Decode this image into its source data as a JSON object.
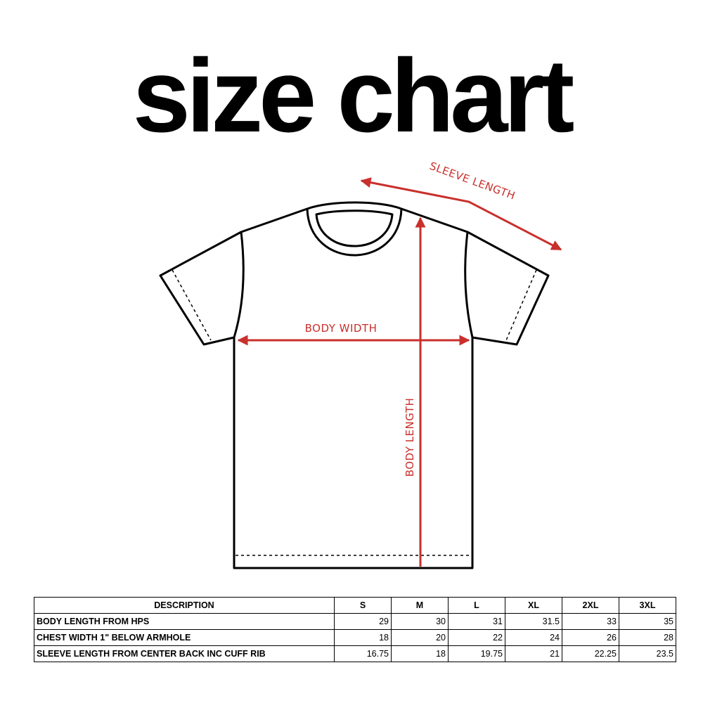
{
  "title": "size chart",
  "diagram": {
    "labels": {
      "sleeve_length": "SLEEVE LENGTH",
      "body_width": "BODY WIDTH",
      "body_length": "BODY LENGTH"
    },
    "colors": {
      "accent": "#c9302c",
      "outline": "#000000"
    }
  },
  "table": {
    "headers": [
      "DESCRIPTION",
      "S",
      "M",
      "L",
      "XL",
      "2XL",
      "3XL"
    ],
    "rows": [
      {
        "description": "BODY LENGTH FROM HPS",
        "values": [
          "29",
          "30",
          "31",
          "31.5",
          "33",
          "35"
        ]
      },
      {
        "description": "CHEST WIDTH 1\" BELOW ARMHOLE",
        "values": [
          "18",
          "20",
          "22",
          "24",
          "26",
          "28"
        ]
      },
      {
        "description": "SLEEVE LENGTH FROM CENTER BACK INC CUFF RIB",
        "values": [
          "16.75",
          "18",
          "19.75",
          "21",
          "22.25",
          "23.5"
        ]
      }
    ]
  }
}
